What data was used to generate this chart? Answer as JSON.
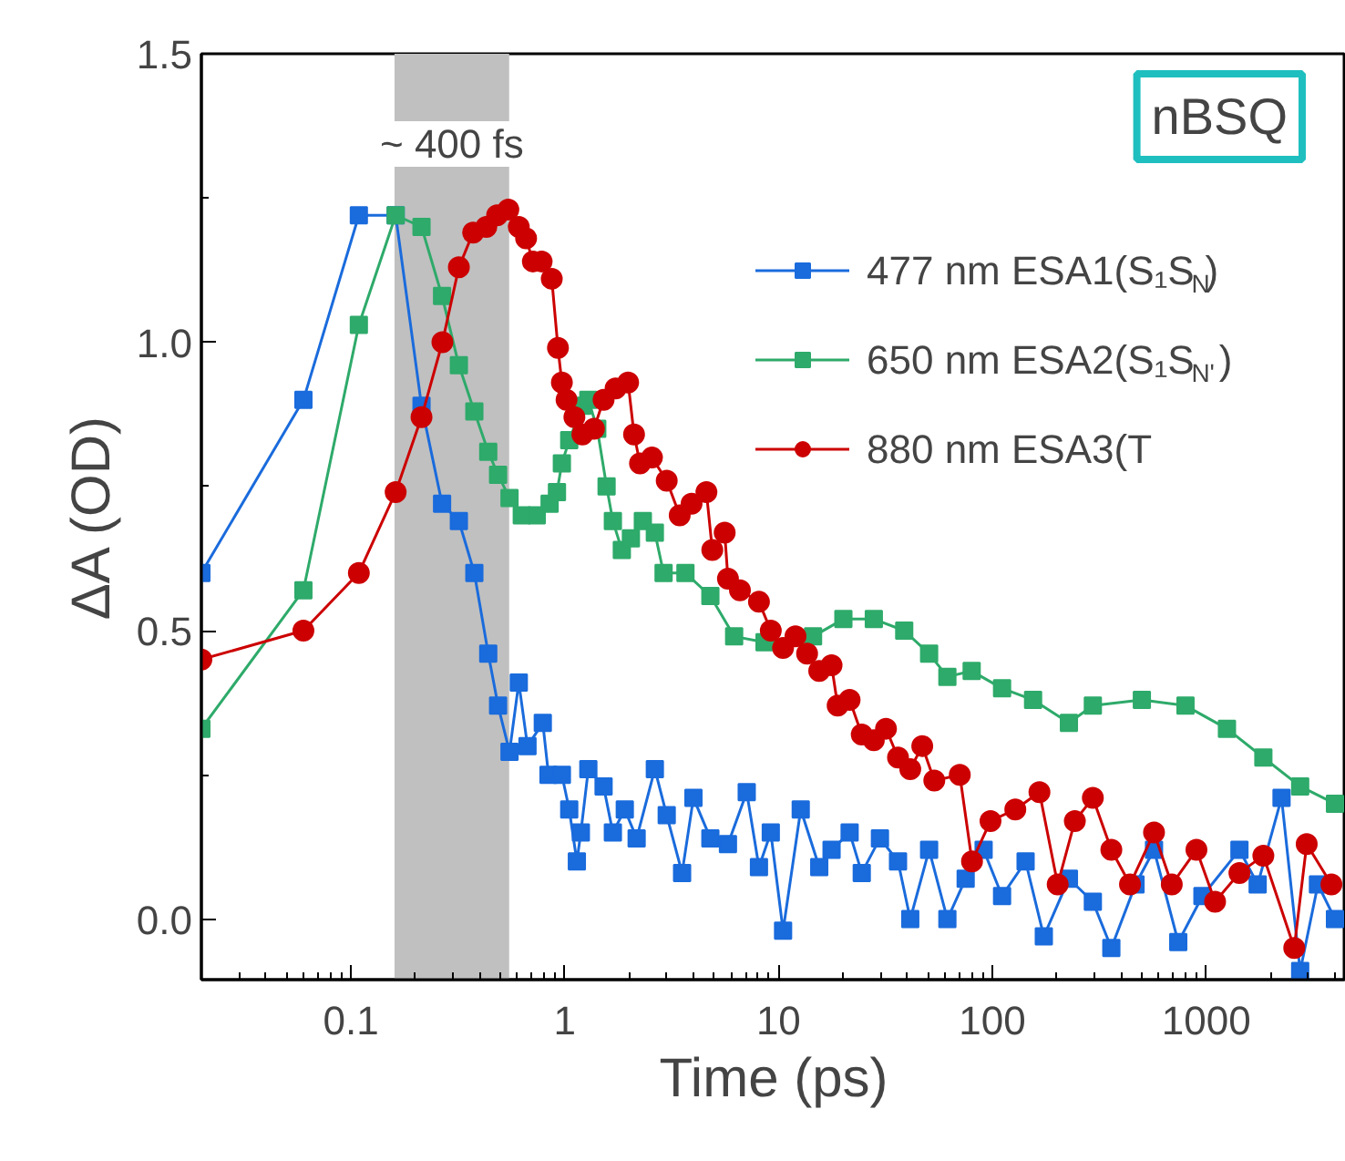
{
  "chart_data": {
    "type": "line",
    "xlabel": "Time (ps)",
    "ylabel": "ΔA (OD)",
    "log": "x",
    "grid": false,
    "legend": "top right",
    "xlim": [
      0.02,
      4500
    ],
    "xticks": [
      0.1,
      1,
      10,
      100,
      1000
    ],
    "ylim": [
      -0.105,
      1.5
    ],
    "yticks": [
      {
        "value": 0,
        "label": "0.0"
      },
      {
        "value": 0.5,
        "label": "0.5"
      },
      {
        "value": 1.0,
        "label": "1.0"
      },
      {
        "value": 1.5,
        "label": "1.5"
      }
    ],
    "annotations": [
      "nBSQ"
    ],
    "bands": [
      {
        "axis": "x",
        "from": 0.16,
        "to": 0.55,
        "label": "~ 400 fs",
        "color": "#c0c0c0"
      }
    ],
    "series": [
      {
        "name": "477 nm ESA1(S₁S$_{N}$)",
        "color": "#1a6bdc",
        "marker": "square",
        "x": [
          0.02,
          0.06,
          0.109,
          0.162,
          0.214,
          0.267,
          0.32,
          0.378,
          0.439,
          0.488,
          0.552,
          0.61,
          0.67,
          0.79,
          0.84,
          0.97,
          1.05,
          1.14,
          1.19,
          1.29,
          1.52,
          1.68,
          1.91,
          2.17,
          2.64,
          3.0,
          3.54,
          4.0,
          4.8,
          5.8,
          7.1,
          8.1,
          9.2,
          10.5,
          12.7,
          15.5,
          17.7,
          21.5,
          24.5,
          29.8,
          36.2,
          41.3,
          50.6,
          61.6,
          75,
          91,
          111,
          143,
          174,
          228,
          295,
          360,
          467,
          570,
          740,
          960,
          1430,
          1740,
          2250,
          2750,
          3330,
          4000
        ],
        "values": [
          0.6,
          0.9,
          1.22,
          1.22,
          0.89,
          0.72,
          0.69,
          0.6,
          0.46,
          0.37,
          0.29,
          0.41,
          0.3,
          0.34,
          0.25,
          0.25,
          0.19,
          0.1,
          0.15,
          0.26,
          0.23,
          0.15,
          0.19,
          0.14,
          0.26,
          0.18,
          0.08,
          0.21,
          0.14,
          0.13,
          0.22,
          0.09,
          0.15,
          -0.02,
          0.19,
          0.09,
          0.12,
          0.15,
          0.08,
          0.14,
          0.1,
          0.0,
          0.12,
          0.0,
          0.07,
          0.12,
          0.04,
          0.1,
          -0.03,
          0.07,
          0.03,
          -0.05,
          0.06,
          0.12,
          -0.04,
          0.04,
          0.12,
          0.06,
          0.21,
          -0.09,
          0.06,
          0.0
        ]
      },
      {
        "name": "650 nm ESA2(S₁S$_{N'}$)",
        "color": "#2eaa6a",
        "marker": "square",
        "x": [
          0.02,
          0.06,
          0.109,
          0.162,
          0.214,
          0.267,
          0.32,
          0.378,
          0.439,
          0.488,
          0.552,
          0.63,
          0.74,
          0.85,
          0.92,
          0.97,
          1.05,
          1.21,
          1.29,
          1.42,
          1.57,
          1.68,
          1.85,
          2.04,
          2.32,
          2.64,
          2.9,
          3.67,
          4.8,
          6.2,
          8.6,
          14.5,
          20.1,
          27.9,
          38.7,
          50.6,
          61.6,
          80,
          111,
          155,
          228,
          295,
          500,
          800,
          1250,
          1850,
          2750,
          4000
        ],
        "values": [
          0.33,
          0.57,
          1.03,
          1.22,
          1.2,
          1.08,
          0.96,
          0.88,
          0.81,
          0.77,
          0.73,
          0.7,
          0.7,
          0.72,
          0.74,
          0.79,
          0.83,
          0.89,
          0.9,
          0.85,
          0.75,
          0.69,
          0.64,
          0.66,
          0.69,
          0.67,
          0.6,
          0.6,
          0.56,
          0.49,
          0.48,
          0.49,
          0.52,
          0.52,
          0.5,
          0.46,
          0.42,
          0.43,
          0.4,
          0.38,
          0.34,
          0.37,
          0.38,
          0.37,
          0.33,
          0.28,
          0.23,
          0.2
        ]
      },
      {
        "name": "880 nm ESA3(T",
        "color": "#cc0000",
        "marker": "circle",
        "x": [
          0.02,
          0.06,
          0.109,
          0.162,
          0.214,
          0.268,
          0.32,
          0.373,
          0.43,
          0.483,
          0.545,
          0.61,
          0.66,
          0.71,
          0.78,
          0.87,
          0.93,
          0.97,
          1.02,
          1.11,
          1.21,
          1.37,
          1.52,
          1.73,
          1.98,
          2.11,
          2.25,
          2.56,
          3.0,
          3.45,
          3.92,
          4.6,
          4.9,
          5.6,
          5.8,
          6.6,
          8.1,
          9.2,
          10.5,
          12,
          13.6,
          15.5,
          17.7,
          18.9,
          21.5,
          24.5,
          27.9,
          31.8,
          36.2,
          41.3,
          47,
          53.5,
          70.4,
          80.3,
          98,
          128,
          166,
          202,
          243,
          295,
          360,
          440,
          570,
          690,
          900,
          1100,
          1430,
          1850,
          2580,
          2950,
          3850
        ],
        "values": [
          0.45,
          0.5,
          0.6,
          0.74,
          0.87,
          1.0,
          1.13,
          1.19,
          1.2,
          1.22,
          1.23,
          1.2,
          1.18,
          1.14,
          1.14,
          1.11,
          0.99,
          0.93,
          0.9,
          0.87,
          0.84,
          0.85,
          0.9,
          0.92,
          0.93,
          0.84,
          0.79,
          0.8,
          0.76,
          0.7,
          0.72,
          0.74,
          0.64,
          0.67,
          0.59,
          0.57,
          0.55,
          0.5,
          0.47,
          0.49,
          0.46,
          0.43,
          0.44,
          0.37,
          0.38,
          0.32,
          0.31,
          0.33,
          0.28,
          0.26,
          0.3,
          0.24,
          0.25,
          0.1,
          0.17,
          0.19,
          0.22,
          0.06,
          0.17,
          0.21,
          0.12,
          0.06,
          0.15,
          0.06,
          0.12,
          0.03,
          0.08,
          0.11,
          -0.05,
          0.13,
          0.06
        ]
      }
    ]
  }
}
